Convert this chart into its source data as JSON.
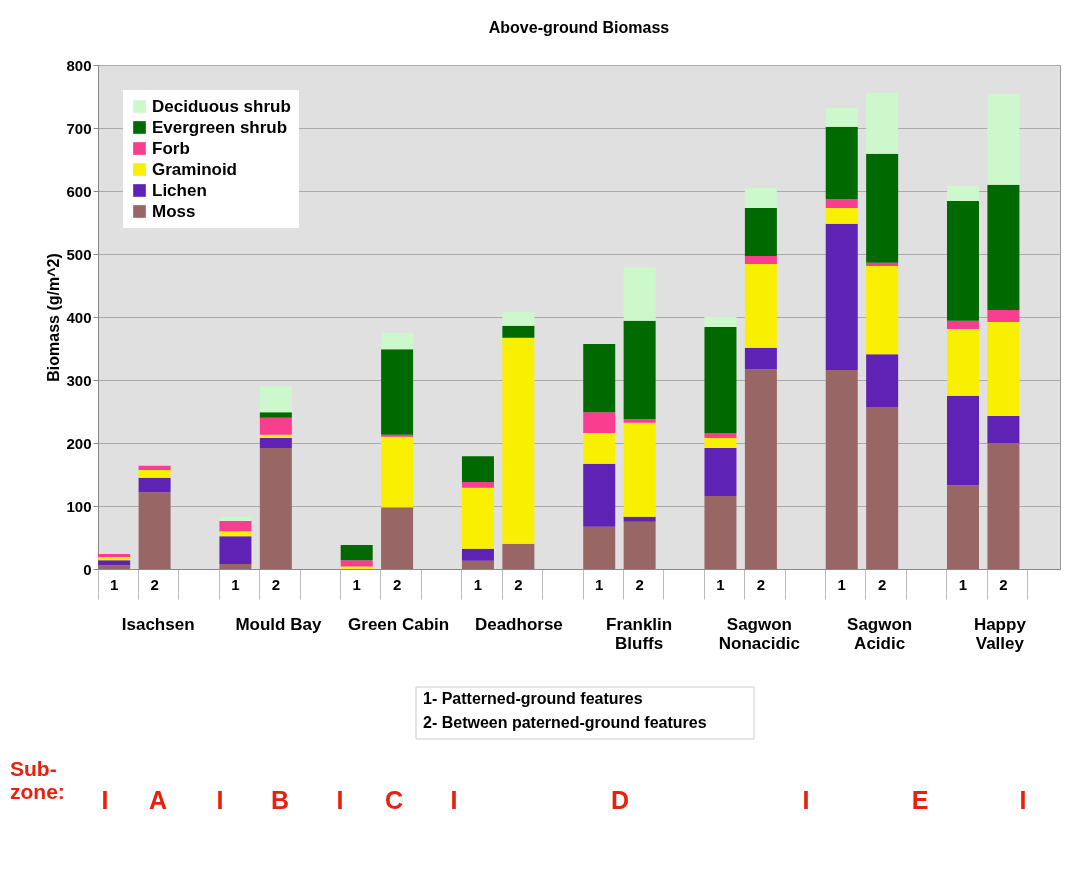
{
  "chart_data": {
    "type": "bar",
    "stacked": true,
    "title": "Above-ground Biomass",
    "ylabel": "Biomass (g/m^2)",
    "categories": [
      "1",
      "2",
      null,
      "1",
      "2",
      null,
      "1",
      "2",
      null,
      "1",
      "2",
      null,
      "1",
      "2",
      null,
      "1",
      "2",
      null,
      "1",
      "2",
      null,
      "1",
      "2",
      null
    ],
    "series": [
      {
        "name": "Moss",
        "color": "#996666",
        "values": [
          6,
          122,
          null,
          8,
          192,
          null,
          0,
          98,
          null,
          13,
          40,
          null,
          67,
          75,
          null,
          116,
          317,
          null,
          316,
          257,
          null,
          133,
          200,
          null
        ]
      },
      {
        "name": "Lichen",
        "color": "#5e22b4",
        "values": [
          8,
          23,
          null,
          44,
          16,
          null,
          0,
          0,
          null,
          19,
          0,
          null,
          100,
          8,
          null,
          76,
          34,
          null,
          232,
          84,
          null,
          142,
          43,
          null
        ]
      },
      {
        "name": "Graminoid",
        "color": "#f8f000",
        "values": [
          5,
          12,
          null,
          8,
          5,
          null,
          4,
          112,
          null,
          97,
          327,
          null,
          49,
          149,
          null,
          16,
          133,
          null,
          25,
          140,
          null,
          106,
          149,
          null
        ]
      },
      {
        "name": "Forb",
        "color": "#f93d8f",
        "values": [
          5,
          7,
          null,
          16,
          27,
          null,
          10,
          3,
          null,
          9,
          0,
          null,
          33,
          6,
          null,
          8,
          13,
          null,
          14,
          5,
          null,
          13,
          19,
          null
        ]
      },
      {
        "name": "Evergreen shrub",
        "color": "#006a00",
        "values": [
          0,
          0,
          null,
          0,
          9,
          null,
          24,
          136,
          null,
          41,
          19,
          null,
          108,
          156,
          null,
          168,
          76,
          null,
          115,
          173,
          null,
          190,
          199,
          null
        ]
      },
      {
        "name": "Deciduous shrub",
        "color": "#ccf8cc",
        "values": [
          0,
          0,
          null,
          7,
          41,
          null,
          0,
          26,
          null,
          0,
          22,
          null,
          0,
          85,
          null,
          16,
          32,
          null,
          30,
          97,
          null,
          24,
          144,
          null
        ]
      }
    ],
    "ylim": [
      0,
      800
    ],
    "yticks": [
      0,
      100,
      200,
      300,
      400,
      500,
      600,
      700,
      800
    ],
    "grid": "y",
    "legend": "top left",
    "annotations": [
      "Isachsen",
      "Mould Bay",
      "Green Cabin",
      "Deadhorse",
      "Franklin\nBluffs",
      "Sagwon\nNonacidic",
      "Sagwon\nAcidic",
      "Happy\nValley",
      "1- Patterned-ground features",
      "2- Between paterned-ground features",
      "Sub-\nzone:",
      "I",
      "A",
      "I",
      "B",
      "I",
      "C",
      "I",
      "D",
      "I",
      "E",
      "I"
    ]
  }
}
